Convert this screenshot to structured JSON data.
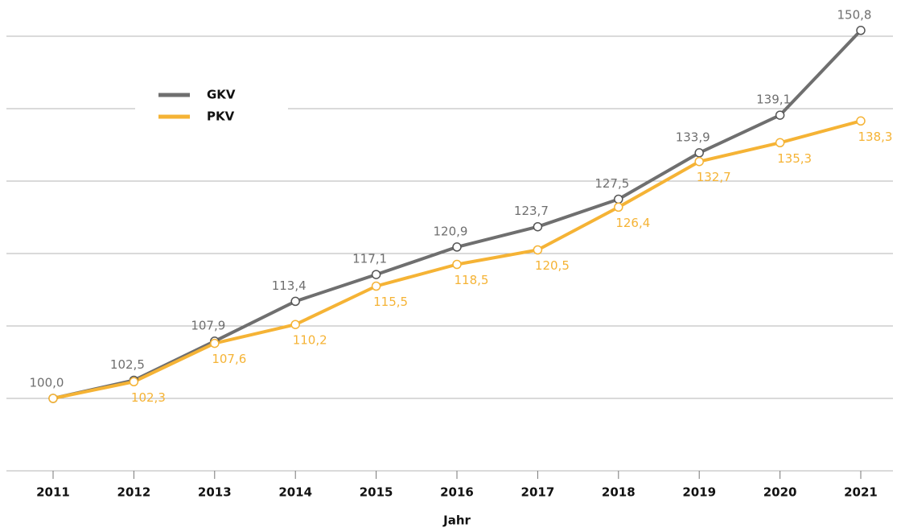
{
  "chart_data": {
    "type": "line",
    "x_label": "Jahr",
    "categories": [
      "2011",
      "2012",
      "2013",
      "2014",
      "2015",
      "2016",
      "2017",
      "2018",
      "2019",
      "2020",
      "2021"
    ],
    "series": [
      {
        "name": "GKV",
        "color": "#6f6f6f",
        "values": [
          100.0,
          102.5,
          107.9,
          113.4,
          117.1,
          120.9,
          123.7,
          127.5,
          133.9,
          139.1,
          150.8
        ],
        "value_labels": [
          "100,0",
          "102,5",
          "107,9",
          "113,4",
          "117,1",
          "120,9",
          "123,7",
          "127,5",
          "133,9",
          "139,1",
          "150,8"
        ]
      },
      {
        "name": "PKV",
        "color": "#f5b335",
        "values": [
          100.0,
          102.3,
          107.6,
          110.2,
          115.5,
          118.5,
          120.5,
          126.4,
          132.7,
          135.3,
          138.3
        ],
        "value_labels": [
          null,
          "102,3",
          "107,6",
          "110,2",
          "115,5",
          "118,5",
          "120,5",
          "126,4",
          "132,7",
          "135,3",
          "138,3"
        ]
      }
    ],
    "ylim": [
      90,
      155
    ],
    "yticks": [
      90,
      100,
      110,
      120,
      130,
      140,
      150
    ],
    "grid": true
  }
}
